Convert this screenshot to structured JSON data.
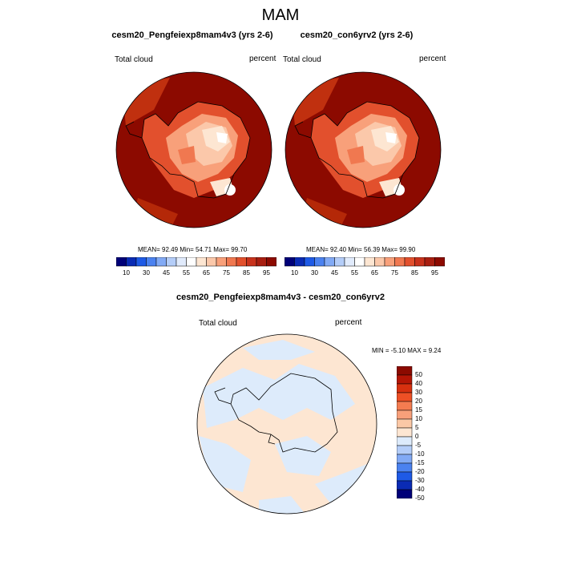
{
  "figure": {
    "title": "MAM"
  },
  "panels": [
    {
      "title": "cesm20_Pengfeiexp8mam4v3 (yrs 2-6)",
      "left_label": "Total cloud",
      "right_label": "percent",
      "stats": "MEAN=  92.49  Min=  54.71  Max=  99.70"
    },
    {
      "title": "cesm20_con6yrv2 (yrs 2-6)",
      "left_label": "Total cloud",
      "right_label": "percent",
      "stats": "MEAN=  92.40  Min=  56.39  Max=  99.90"
    },
    {
      "title": "cesm20_Pengfeiexp8mam4v3 - cesm20_con6yrv2",
      "left_label": "Total cloud",
      "right_label": "percent",
      "stats": "MIN =  -5.10 MAX =   9.24"
    }
  ],
  "colorbar_abs": {
    "labels": [
      "10",
      "30",
      "45",
      "55",
      "65",
      "75",
      "85",
      "95"
    ],
    "colors": [
      "#000078",
      "#0a2bb4",
      "#1e5ae6",
      "#4b82f0",
      "#82aaf5",
      "#b4cdf8",
      "#e1ebfc",
      "#ffffff",
      "#fde6d2",
      "#fbc8aa",
      "#f8a07a",
      "#f07850",
      "#e2502d",
      "#c8321c",
      "#a81e10",
      "#8c0a00"
    ]
  },
  "colorbar_diff": {
    "labels": [
      "50",
      "40",
      "30",
      "20",
      "15",
      "10",
      "5",
      "0",
      "-5",
      "-10",
      "-15",
      "-20",
      "-30",
      "-40",
      "-50"
    ],
    "colors": [
      "#8c0a00",
      "#b41505",
      "#d7300f",
      "#ee5025",
      "#f47c50",
      "#f8a07a",
      "#fbc8a6",
      "#fde6d2",
      "#ddebfb",
      "#b4cdf8",
      "#82aaf5",
      "#4b82f0",
      "#1e5ae6",
      "#0a2bb4",
      "#000078"
    ]
  },
  "colors": {
    "ocean_high": "#8c0a00",
    "diff_positive": "#fde6d2",
    "diff_negative": "#ddebfb"
  }
}
